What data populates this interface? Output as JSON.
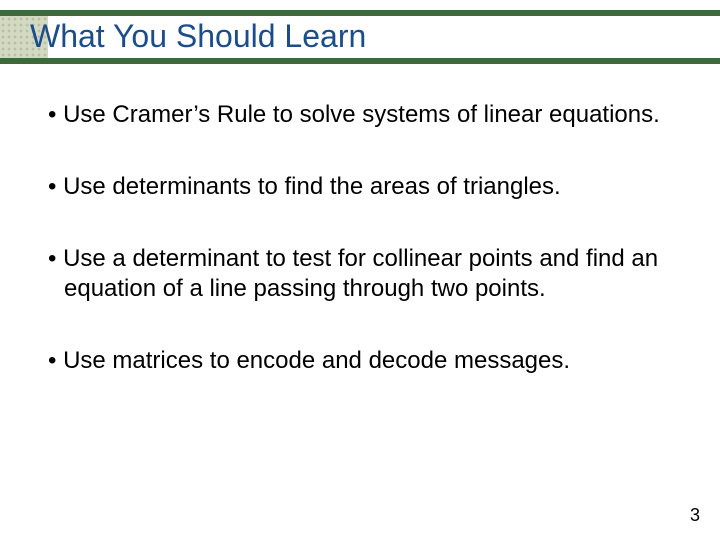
{
  "layout": {
    "accent_bar_color": "#3a6b3a",
    "title_color": "#1a4d8a",
    "text_color": "#000000",
    "background_color": "#ffffff",
    "title_fontsize": 32,
    "body_fontsize": 24,
    "pagenum_fontsize": 18
  },
  "title": "What You Should Learn",
  "bullets": {
    "b0": "Use Cramer’s Rule to solve systems of linear equations.",
    "b1": "Use determinants to find the areas of triangles.",
    "b2": "Use a determinant to test for collinear points and find an equation of a line passing through two points.",
    "b3": "Use matrices to encode and decode messages."
  },
  "page_number": "3"
}
